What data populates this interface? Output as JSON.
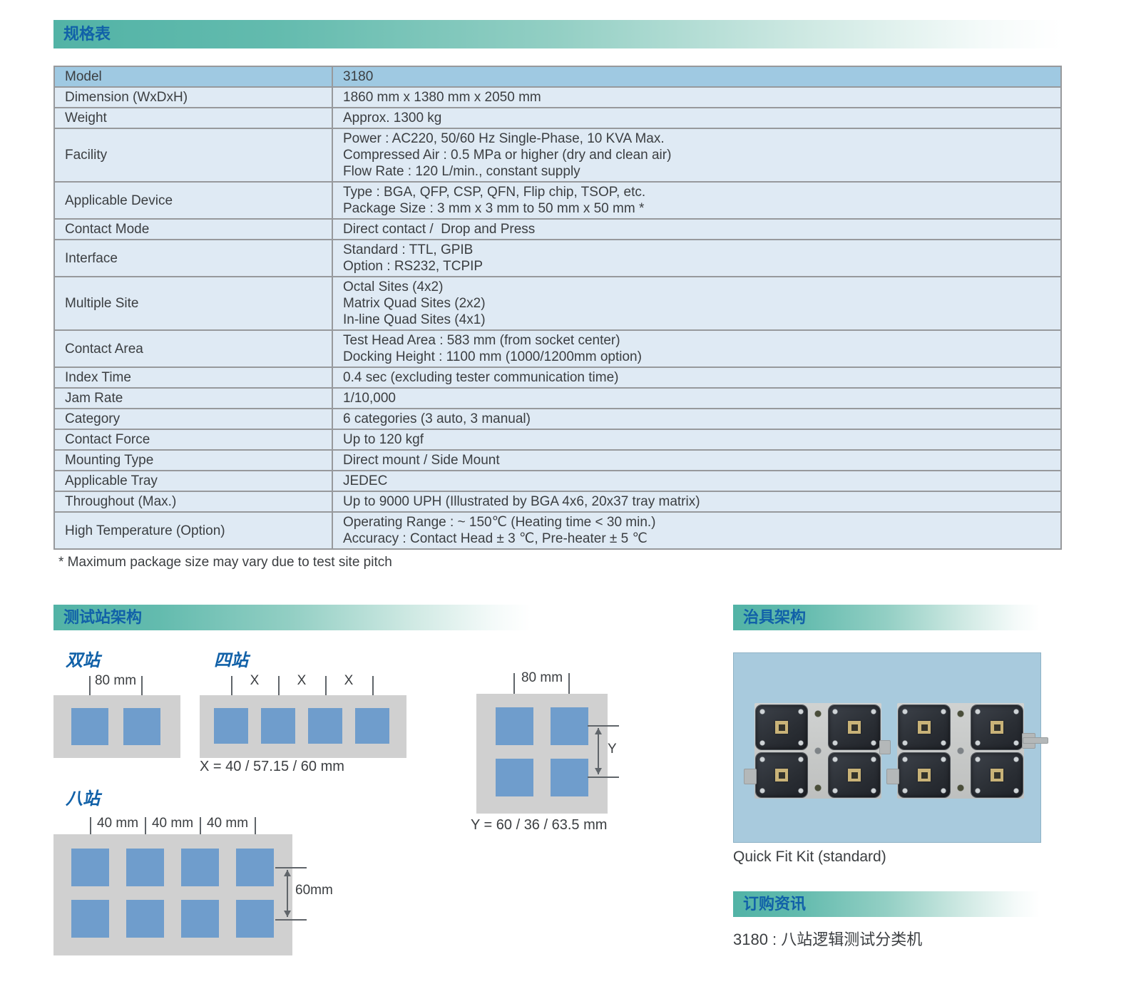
{
  "page": {
    "spec_header": "规格表",
    "footnote": "* Maximum package size may vary due to test site pitch"
  },
  "colors": {
    "band_teal": "#52b3a6",
    "header_text_blue": "#1161a8",
    "table_header_bg": "#9fc9e2",
    "table_row_bg": "#dfeaf4",
    "site_blue": "#6f9dcc",
    "diagram_gray": "#d0d0d0",
    "panel_blue": "#a8cadd"
  },
  "table": {
    "rows": [
      {
        "label": "Model",
        "header": true,
        "lines": [
          "3180"
        ]
      },
      {
        "label": "Dimension (WxDxH)",
        "lines": [
          "1860 mm x 1380 mm x 2050 mm"
        ]
      },
      {
        "label": "Weight",
        "lines": [
          "Approx. 1300 kg"
        ]
      },
      {
        "label": "Facility",
        "lines": [
          "Power : AC220, 50/60 Hz Single-Phase, 10 KVA Max.",
          "Compressed Air : 0.5 MPa or higher (dry and clean air)",
          "Flow Rate : 120 L/min., constant supply"
        ]
      },
      {
        "label": "Applicable Device",
        "lines": [
          "Type : BGA, QFP, CSP, QFN, Flip chip, TSOP, etc.",
          "Package Size : 3 mm x 3 mm to 50 mm x 50 mm *"
        ]
      },
      {
        "label": "Contact Mode",
        "lines": [
          "Direct contact /  Drop and Press"
        ]
      },
      {
        "label": "Interface",
        "lines": [
          "Standard : TTL, GPIB",
          "Option : RS232, TCPIP"
        ]
      },
      {
        "label": "Multiple Site",
        "lines": [
          "Octal Sites (4x2)",
          "Matrix Quad Sites (2x2)",
          "In-line Quad Sites (4x1)"
        ]
      },
      {
        "label": "Contact Area",
        "lines": [
          "Test Head Area : 583 mm (from socket center)",
          "Docking Height : 1100 mm (1000/1200mm option)"
        ]
      },
      {
        "label": "Index Time",
        "lines": [
          "0.4 sec (excluding tester communication time)"
        ]
      },
      {
        "label": "Jam Rate",
        "lines": [
          "1/10,000"
        ]
      },
      {
        "label": "Category",
        "lines": [
          "6 categories (3 auto, 3 manual)"
        ]
      },
      {
        "label": "Contact Force",
        "lines": [
          "Up to 120 kgf"
        ]
      },
      {
        "label": "Mounting Type",
        "lines": [
          "Direct mount / Side Mount"
        ]
      },
      {
        "label": "Applicable Tray",
        "lines": [
          "JEDEC"
        ]
      },
      {
        "label": "Throughout (Max.)",
        "lines": [
          "Up to 9000 UPH (Illustrated by BGA 4x6, 20x37 tray matrix)"
        ]
      },
      {
        "label": "High Temperature (Option)",
        "lines": [
          "Operating Range : ~ 150℃ (Heating time < 30 min.)",
          "Accuracy : Contact Head ± 3 ℃, Pre-heater ± 5 ℃"
        ]
      }
    ]
  },
  "stations": {
    "header": "测试站架构",
    "dual": {
      "label": "双站",
      "dim": "80 mm"
    },
    "quad": {
      "label": "四站",
      "dim_x": "X",
      "formula": "X = 40 / 57.15 / 60 mm"
    },
    "matrix": {
      "dim_top": "80 mm",
      "dim_y": "Y",
      "formula": "Y = 60 / 36 / 63.5 mm"
    },
    "octal": {
      "label": "八站",
      "dims": [
        "40 mm",
        "40 mm",
        "40 mm"
      ],
      "dim_y": "60mm"
    }
  },
  "fixture": {
    "header": "治具架构",
    "caption": "Quick Fit Kit (standard)"
  },
  "ordering": {
    "header": "订购资讯",
    "item": "3180 : 八站逻辑测试分类机"
  }
}
